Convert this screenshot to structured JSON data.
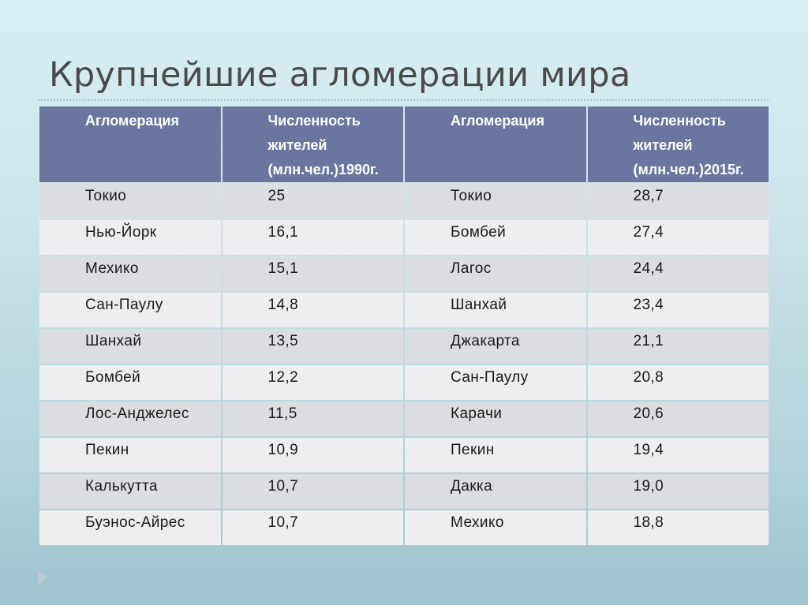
{
  "slide": {
    "title": "Крупнейшие агломерации мира"
  },
  "table": {
    "headers": [
      "Агломерация",
      "Численность жителей (млн.чел.)1990г.",
      "Агломерация",
      "Численность жителей (млн.чел.)2015г."
    ],
    "rows": [
      [
        "Токио",
        "25",
        "Токио",
        "28,7"
      ],
      [
        "Нью-Йорк",
        "16,1",
        "Бомбей",
        "27,4"
      ],
      [
        "Мехико",
        "15,1",
        "Лагос",
        "24,4"
      ],
      [
        "Сан-Паулу",
        "14,8",
        "Шанхай",
        "23,4"
      ],
      [
        "Шанхай",
        "13,5",
        "Джакарта",
        "21,1"
      ],
      [
        "Бомбей",
        "12,2",
        "Сан-Паулу",
        "20,8"
      ],
      [
        "Лос-Анджелес",
        "11,5",
        "Карачи",
        "20,6"
      ],
      [
        "Пекин",
        "10,9",
        "Пекин",
        "19,4"
      ],
      [
        "Калькутта",
        "10,7",
        "Дакка",
        "19,0"
      ],
      [
        "Буэнос-Айрес",
        "10,7",
        "Мехико",
        "18,8"
      ]
    ]
  },
  "icons": {
    "nav": "play-icon"
  }
}
